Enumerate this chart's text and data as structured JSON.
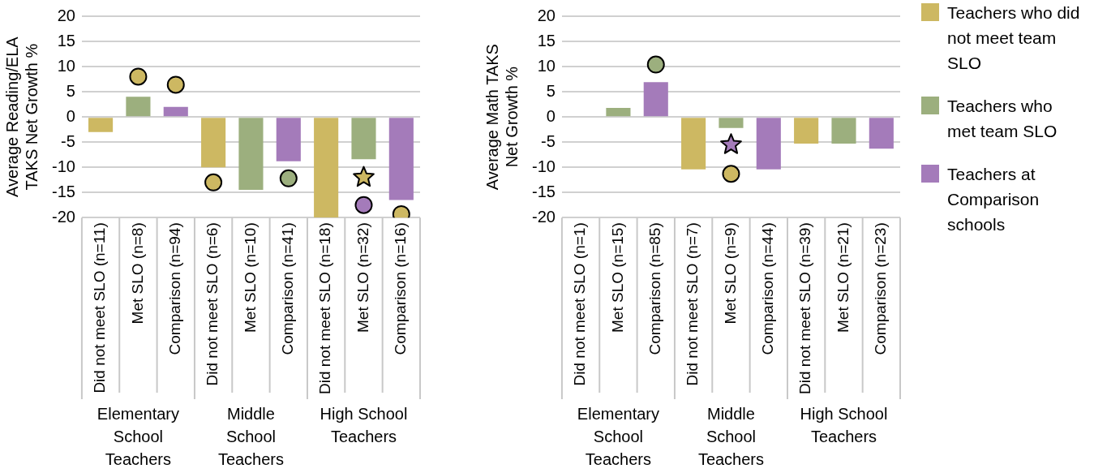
{
  "chart_data": [
    {
      "type": "bar",
      "ylabel": "Average Reading/ELA TAKS Net Growth %",
      "categories": [
        "Did not meet SLO (n=11)",
        "Met SLO (n=8)",
        "Comparison (n=94)",
        "Did not meet SLO (n=6)",
        "Met SLO (n=10)",
        "Comparison (n=41)",
        "Did not meet SLO (n=18)",
        "Met SLO (n=32)",
        "Comparison (n=16)"
      ],
      "series": [
        {
          "color": "#cdb862",
          "values": [
            -3,
            null,
            null,
            -10,
            null,
            null,
            -20,
            null,
            null
          ]
        },
        {
          "color": "#9caf7e",
          "values": [
            null,
            4,
            null,
            null,
            -14.5,
            null,
            null,
            -8.4,
            null
          ]
        },
        {
          "color": "#a47bba",
          "values": [
            null,
            null,
            2,
            null,
            null,
            -8.8,
            null,
            null,
            -16.5
          ]
        },
        {
          "type": "scatter",
          "marker": "circle",
          "colors": [
            "#cdb862",
            "#cdb862",
            "#cdb862",
            "#9caf7e",
            "#9caf7e",
            "#a47bba",
            "#cdb862"
          ],
          "x": [
            "Met SLO (n=8)",
            "Comparison (n=94)",
            "Did not meet SLO (n=6)",
            "Comparison (n=41)",
            "Met SLO (n=32)",
            "Met SLO (n=32)",
            "Comparison (n=16)"
          ],
          "values": [
            8,
            6.4,
            -13,
            -12.2,
            null,
            -17.5,
            -19.3
          ]
        },
        {
          "type": "scatter",
          "marker": "star",
          "colors": [
            "#cdb862"
          ],
          "x": [
            "Met SLO (n=32)"
          ],
          "values": [
            -12
          ]
        }
      ],
      "ylim": [
        -20,
        20
      ],
      "yticks": [
        -20,
        -15,
        -10,
        -5,
        0,
        5,
        10,
        15,
        20
      ],
      "grid": "y",
      "legend": false,
      "annotations": [
        "Elementary School Teachers",
        "Middle School Teachers",
        "High School Teachers"
      ]
    },
    {
      "type": "bar",
      "ylabel": "Average Math TAKS Net Growth %",
      "categories": [
        "Did not meet SLO (n=1)",
        "Met SLO (n=15)",
        "Comparison (n=85)",
        "Did not meet SLO (n=7)",
        "Met SLO (n=9)",
        "Comparison (n=44)",
        "Did not meet SLO (n=39)",
        "Met SLO (n=21)",
        "Comparison (n=23)"
      ],
      "series": [
        {
          "name": "Teachers who did not meet team SLO",
          "color": "#cdb862",
          "values": [
            0,
            null,
            null,
            -10.4,
            null,
            null,
            -5.3,
            null,
            null
          ]
        },
        {
          "name": "Teachers who met team SLO",
          "color": "#9caf7e",
          "values": [
            null,
            1.8,
            null,
            null,
            -2.2,
            null,
            null,
            -5.3,
            null
          ]
        },
        {
          "name": "Teachers at Comparison schools",
          "color": "#a47bba",
          "values": [
            null,
            null,
            6.9,
            null,
            null,
            -10.4,
            null,
            null,
            -6.3
          ]
        },
        {
          "type": "scatter",
          "marker": "circle",
          "colors": [
            "#9caf7e",
            "#cdb862"
          ],
          "x": [
            "Comparison (n=85)",
            "Met SLO (n=9)"
          ],
          "values": [
            10.4,
            -11.3
          ]
        },
        {
          "type": "scatter",
          "marker": "star",
          "colors": [
            "#a47bba"
          ],
          "x": [
            "Met SLO (n=9)"
          ],
          "values": [
            -5.5
          ]
        }
      ],
      "ylim": [
        -20,
        20
      ],
      "yticks": [
        -20,
        -15,
        -10,
        -5,
        0,
        5,
        10,
        15,
        20
      ],
      "grid": "y",
      "legend": "right",
      "annotations": [
        "Elementary School Teachers",
        "Middle School Teachers",
        "High School Teachers"
      ]
    }
  ]
}
